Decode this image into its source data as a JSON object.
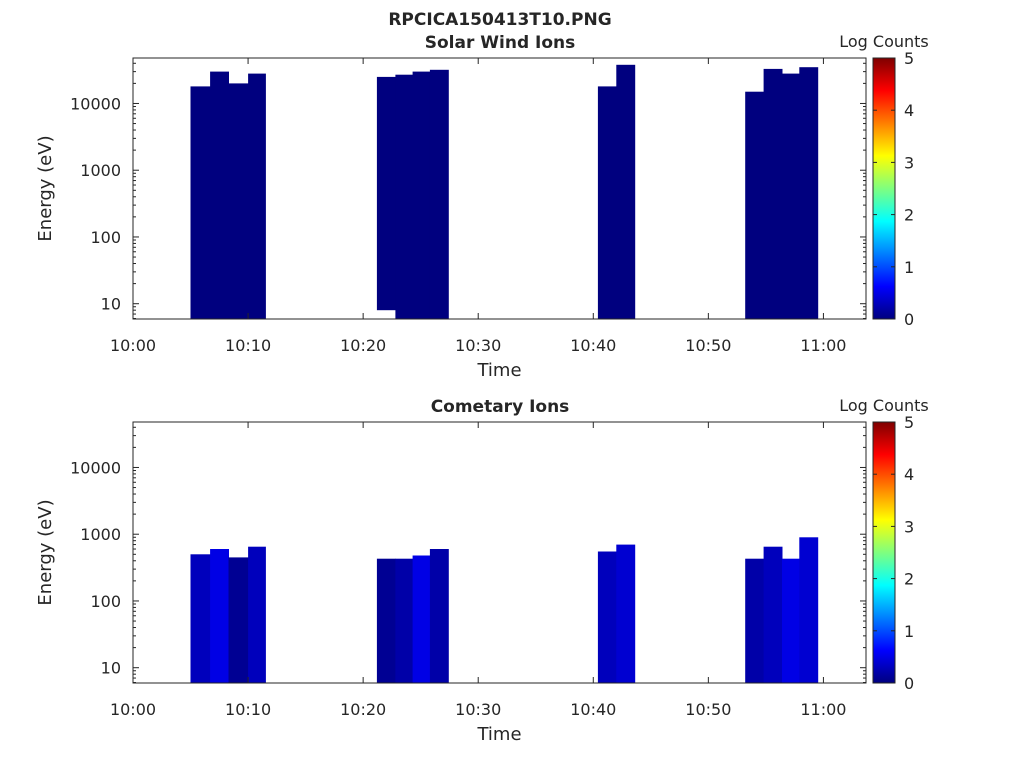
{
  "figure": {
    "title": "RPCICA150413T10.PNG"
  },
  "colormap_stops": [
    "#00007f",
    "#0000ff",
    "#007fff",
    "#00ffff",
    "#7fff7f",
    "#ffff00",
    "#ff7f00",
    "#ff0000",
    "#7f0000"
  ],
  "chart_data": [
    {
      "type": "heatmap",
      "title": "Solar Wind Ions",
      "xlabel": "Time",
      "ylabel": "Energy (eV)",
      "x_ticks": [
        "10:00",
        "10:10",
        "10:20",
        "10:30",
        "10:40",
        "10:50",
        "11:00"
      ],
      "y_scale": "log",
      "y_ticks": [
        "10",
        "100",
        "1000",
        "10000"
      ],
      "colorbar": {
        "label": "Log Counts",
        "range": [
          0,
          5
        ],
        "ticks": [
          "0",
          "1",
          "2",
          "3",
          "4",
          "5"
        ]
      },
      "blocks": [
        {
          "t_start": "10:05",
          "t_end": "10:06.7",
          "e_min": 6,
          "e_max": 18000,
          "log_counts": 0
        },
        {
          "t_start": "10:06.7",
          "t_end": "10:08.3",
          "e_min": 6,
          "e_max": 30000,
          "log_counts": 0
        },
        {
          "t_start": "10:08.3",
          "t_end": "10:10",
          "e_min": 6,
          "e_max": 20000,
          "log_counts": 0
        },
        {
          "t_start": "10:10",
          "t_end": "10:11.5",
          "e_min": 6,
          "e_max": 28000,
          "log_counts": 0
        },
        {
          "t_start": "10:21.2",
          "t_end": "10:22.8",
          "e_min": 8,
          "e_max": 25000,
          "log_counts": 0
        },
        {
          "t_start": "10:22.8",
          "t_end": "10:24.3",
          "e_min": 6,
          "e_max": 27000,
          "log_counts": 0
        },
        {
          "t_start": "10:24.3",
          "t_end": "10:25.8",
          "e_min": 6,
          "e_max": 30000,
          "log_counts": 0
        },
        {
          "t_start": "10:25.8",
          "t_end": "10:27.4",
          "e_min": 6,
          "e_max": 32000,
          "log_counts": 0
        },
        {
          "t_start": "10:40.4",
          "t_end": "10:42",
          "e_min": 6,
          "e_max": 18000,
          "log_counts": 0
        },
        {
          "t_start": "10:42",
          "t_end": "10:43.6",
          "e_min": 6,
          "e_max": 38000,
          "log_counts": 0
        },
        {
          "t_start": "10:53.2",
          "t_end": "10:54.8",
          "e_min": 6,
          "e_max": 15000,
          "log_counts": 0
        },
        {
          "t_start": "10:54.8",
          "t_end": "10:56.4",
          "e_min": 6,
          "e_max": 33000,
          "log_counts": 0
        },
        {
          "t_start": "10:56.4",
          "t_end": "10:57.9",
          "e_min": 6,
          "e_max": 28000,
          "log_counts": 0
        },
        {
          "t_start": "10:57.9",
          "t_end": "10:59.5",
          "e_min": 6,
          "e_max": 35000,
          "log_counts": 0
        }
      ]
    },
    {
      "type": "heatmap",
      "title": "Cometary Ions",
      "xlabel": "Time",
      "ylabel": "Energy (eV)",
      "x_ticks": [
        "10:00",
        "10:10",
        "10:20",
        "10:30",
        "10:40",
        "10:50",
        "11:00"
      ],
      "y_scale": "log",
      "y_ticks": [
        "10",
        "100",
        "1000",
        "10000"
      ],
      "colorbar": {
        "label": "Log Counts",
        "range": [
          0,
          5
        ],
        "ticks": [
          "0",
          "1",
          "2",
          "3",
          "4",
          "5"
        ]
      },
      "blocks": [
        {
          "t_start": "10:05",
          "t_end": "10:06.7",
          "e_min": 6,
          "e_max": 500,
          "log_counts": 0.3
        },
        {
          "t_start": "10:06.7",
          "t_end": "10:08.3",
          "e_min": 6,
          "e_max": 600,
          "log_counts": 0.5
        },
        {
          "t_start": "10:08.3",
          "t_end": "10:10",
          "e_min": 6,
          "e_max": 450,
          "log_counts": 0.1
        },
        {
          "t_start": "10:10",
          "t_end": "10:11.5",
          "e_min": 6,
          "e_max": 650,
          "log_counts": 0.3
        },
        {
          "t_start": "10:21.2",
          "t_end": "10:22.8",
          "e_min": 6,
          "e_max": 430,
          "log_counts": 0.1
        },
        {
          "t_start": "10:22.8",
          "t_end": "10:24.3",
          "e_min": 6,
          "e_max": 430,
          "log_counts": 0.2
        },
        {
          "t_start": "10:24.3",
          "t_end": "10:25.8",
          "e_min": 6,
          "e_max": 480,
          "log_counts": 0.5
        },
        {
          "t_start": "10:25.8",
          "t_end": "10:27.4",
          "e_min": 6,
          "e_max": 600,
          "log_counts": 0.2
        },
        {
          "t_start": "10:40.4",
          "t_end": "10:42",
          "e_min": 6,
          "e_max": 550,
          "log_counts": 0.3
        },
        {
          "t_start": "10:42",
          "t_end": "10:43.6",
          "e_min": 6,
          "e_max": 700,
          "log_counts": 0.4
        },
        {
          "t_start": "10:53.2",
          "t_end": "10:54.8",
          "e_min": 6,
          "e_max": 430,
          "log_counts": 0.2
        },
        {
          "t_start": "10:54.8",
          "t_end": "10:56.4",
          "e_min": 6,
          "e_max": 650,
          "log_counts": 0.3
        },
        {
          "t_start": "10:56.4",
          "t_end": "10:57.9",
          "e_min": 6,
          "e_max": 430,
          "log_counts": 0.5
        },
        {
          "t_start": "10:57.9",
          "t_end": "10:59.5",
          "e_min": 6,
          "e_max": 900,
          "log_counts": 0.4
        }
      ]
    }
  ]
}
